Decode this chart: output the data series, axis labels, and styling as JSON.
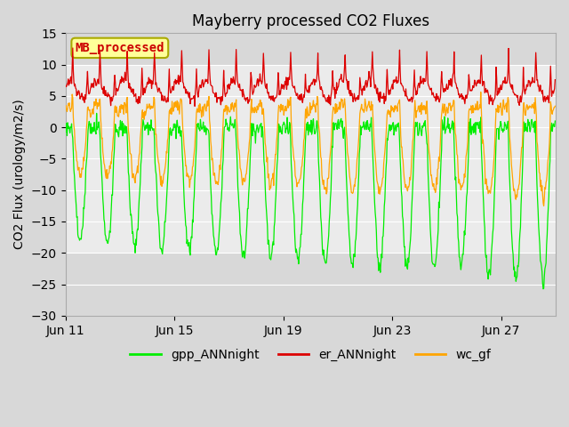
{
  "title": "Mayberry processed CO2 Fluxes",
  "ylabel": "CO2 Flux (urology/m2/s)",
  "ylim": [
    -30,
    15
  ],
  "yticks": [
    -30,
    -25,
    -20,
    -15,
    -10,
    -5,
    0,
    5,
    10,
    15
  ],
  "fig_bg_color": "#d8d8d8",
  "plot_bg_color": "#d8d8d8",
  "inner_band_ymin": -20,
  "inner_band_ymax": 10,
  "inner_band_color": "#ebebeb",
  "grid_color": "#ffffff",
  "legend_label": "MB_processed",
  "legend_facecolor": "#ffff99",
  "legend_edgecolor": "#aaaa00",
  "legend_text_color": "#cc0000",
  "gpp_color": "#00ee00",
  "er_color": "#dd0000",
  "wc_color": "#ffa500",
  "line_width": 0.9,
  "n_days": 18,
  "x_tick_labels": [
    "Jun 11",
    "Jun 15",
    "Jun 19",
    "Jun 23",
    "Jun 27"
  ],
  "x_tick_positions": [
    0,
    4,
    8,
    12,
    16
  ],
  "title_fontsize": 12,
  "axis_fontsize": 10,
  "tick_fontsize": 10
}
